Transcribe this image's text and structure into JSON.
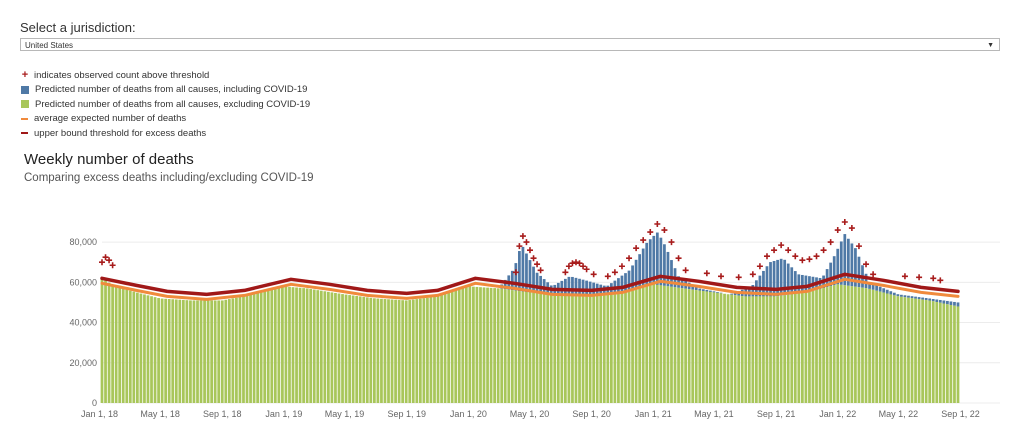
{
  "filter": {
    "label": "Select a jurisdiction:",
    "selected": "United States"
  },
  "legend": [
    {
      "icon": "plus-icon",
      "color": "#a81c1c",
      "text": "indicates observed count above threshold"
    },
    {
      "icon": "square-icon",
      "color": "#4f79a6",
      "text": "Predicted number of deaths from all causes, including COVID-19"
    },
    {
      "icon": "square-icon",
      "color": "#a8c65a",
      "text": "Predicted number of deaths from all causes, excluding COVID-19"
    },
    {
      "icon": "line-icon",
      "color": "#f08a3c",
      "text": "average expected number of deaths"
    },
    {
      "icon": "line-icon",
      "color": "#a01818",
      "text": "upper bound threshold for excess deaths"
    }
  ],
  "chart": {
    "title": "Weekly number of deaths",
    "subtitle": "Comparing excess deaths including/excluding COVID-19"
  },
  "chart_data": {
    "type": "bar",
    "title": "Weekly number of deaths",
    "subtitle": "Comparing excess deaths including/excluding COVID-19",
    "xlabel": "",
    "ylabel": "",
    "ylim": [
      0,
      90000
    ],
    "y_ticks": [
      "0",
      "20,000",
      "40,000",
      "60,000",
      "80,000"
    ],
    "x_ticks": [
      "Jan 1, 18",
      "May 1, 18",
      "Sep 1, 18",
      "Jan 1, 19",
      "May 1, 19",
      "Sep 1, 19",
      "Jan 1, 20",
      "May 1, 20",
      "Sep 1, 20",
      "Jan 1, 21",
      "May 1, 21",
      "Sep 1, 21",
      "Jan 1, 22",
      "May 1, 22",
      "Sep 1, 22"
    ],
    "x_start": "2018-01-06",
    "x_end": "2022-08-27",
    "grid": true,
    "legend": "top-left",
    "colors": {
      "including_covid": "#4f79a6",
      "excluding_covid": "#a8c65a",
      "average_expected": "#f08a3c",
      "upper_bound": "#a01818",
      "above_threshold": "#a81c1c"
    },
    "series": [
      {
        "name": "Predicted number of deaths from all causes, excluding COVID-19",
        "kind": "bar",
        "points": [
          [
            "2018-01-06",
            62000
          ],
          [
            "2018-02-01",
            58000
          ],
          [
            "2018-03-15",
            55000
          ],
          [
            "2018-05-01",
            52000
          ],
          [
            "2018-07-01",
            51000
          ],
          [
            "2018-09-01",
            51000
          ],
          [
            "2018-11-01",
            54000
          ],
          [
            "2019-01-01",
            58000
          ],
          [
            "2019-02-15",
            57000
          ],
          [
            "2019-05-01",
            54000
          ],
          [
            "2019-07-01",
            52000
          ],
          [
            "2019-09-01",
            51000
          ],
          [
            "2019-11-01",
            53000
          ],
          [
            "2020-01-01",
            58000
          ],
          [
            "2020-03-01",
            57000
          ],
          [
            "2020-05-01",
            55000
          ],
          [
            "2020-07-01",
            54000
          ],
          [
            "2020-09-01",
            53000
          ],
          [
            "2020-11-01",
            55000
          ],
          [
            "2021-01-01",
            59000
          ],
          [
            "2021-03-01",
            57000
          ],
          [
            "2021-05-01",
            55000
          ],
          [
            "2021-07-01",
            53000
          ],
          [
            "2021-09-01",
            53000
          ],
          [
            "2021-11-01",
            55000
          ],
          [
            "2022-01-01",
            59000
          ],
          [
            "2022-03-01",
            57000
          ],
          [
            "2022-05-01",
            53000
          ],
          [
            "2022-07-01",
            51000
          ],
          [
            "2022-08-27",
            48000
          ]
        ]
      },
      {
        "name": "Predicted number of deaths from all causes, including COVID-19",
        "kind": "bar",
        "points": [
          [
            "2018-01-06",
            62000
          ],
          [
            "2018-02-01",
            58000
          ],
          [
            "2018-03-15",
            55000
          ],
          [
            "2018-05-01",
            52000
          ],
          [
            "2018-07-01",
            51000
          ],
          [
            "2018-09-01",
            51000
          ],
          [
            "2018-11-01",
            54000
          ],
          [
            "2019-01-01",
            58000
          ],
          [
            "2019-02-15",
            57000
          ],
          [
            "2019-05-01",
            54000
          ],
          [
            "2019-07-01",
            52000
          ],
          [
            "2019-09-01",
            51000
          ],
          [
            "2019-11-01",
            53000
          ],
          [
            "2020-01-01",
            58000
          ],
          [
            "2020-03-01",
            57000
          ],
          [
            "2020-04-01",
            67000
          ],
          [
            "2020-04-15",
            79000
          ],
          [
            "2020-05-15",
            65000
          ],
          [
            "2020-06-15",
            58000
          ],
          [
            "2020-07-20",
            63000
          ],
          [
            "2020-08-20",
            61000
          ],
          [
            "2020-10-01",
            58000
          ],
          [
            "2020-11-15",
            66000
          ],
          [
            "2020-12-20",
            80000
          ],
          [
            "2021-01-10",
            85000
          ],
          [
            "2021-01-25",
            78000
          ],
          [
            "2021-02-20",
            63000
          ],
          [
            "2021-04-01",
            57000
          ],
          [
            "2021-06-01",
            54000
          ],
          [
            "2021-07-15",
            58000
          ],
          [
            "2021-08-20",
            70000
          ],
          [
            "2021-09-15",
            72000
          ],
          [
            "2021-10-15",
            64000
          ],
          [
            "2021-12-01",
            62000
          ],
          [
            "2021-12-25",
            73000
          ],
          [
            "2022-01-15",
            84000
          ],
          [
            "2022-02-05",
            77000
          ],
          [
            "2022-03-05",
            60000
          ],
          [
            "2022-05-01",
            54000
          ],
          [
            "2022-07-01",
            52000
          ],
          [
            "2022-08-27",
            50000
          ]
        ]
      },
      {
        "name": "average expected number of deaths",
        "kind": "line",
        "points": [
          [
            "2018-01-06",
            59500
          ],
          [
            "2018-03-15",
            56000
          ],
          [
            "2018-05-15",
            53000
          ],
          [
            "2018-08-01",
            51500
          ],
          [
            "2018-10-15",
            53500
          ],
          [
            "2019-01-15",
            59000
          ],
          [
            "2019-04-01",
            56500
          ],
          [
            "2019-06-15",
            53500
          ],
          [
            "2019-09-01",
            52000
          ],
          [
            "2019-11-01",
            53500
          ],
          [
            "2020-01-15",
            59500
          ],
          [
            "2020-04-01",
            57000
          ],
          [
            "2020-06-15",
            54000
          ],
          [
            "2020-09-01",
            53500
          ],
          [
            "2020-11-01",
            55000
          ],
          [
            "2021-01-15",
            60500
          ],
          [
            "2021-04-01",
            58000
          ],
          [
            "2021-06-15",
            55000
          ],
          [
            "2021-09-01",
            54000
          ],
          [
            "2021-11-01",
            55500
          ],
          [
            "2022-01-15",
            61500
          ],
          [
            "2022-04-01",
            58500
          ],
          [
            "2022-06-15",
            55000
          ],
          [
            "2022-08-27",
            53000
          ]
        ]
      },
      {
        "name": "upper bound threshold for excess deaths",
        "kind": "line",
        "points": [
          [
            "2018-01-06",
            62000
          ],
          [
            "2018-03-15",
            58500
          ],
          [
            "2018-05-15",
            55500
          ],
          [
            "2018-08-01",
            54000
          ],
          [
            "2018-10-15",
            56000
          ],
          [
            "2019-01-15",
            61500
          ],
          [
            "2019-04-01",
            59000
          ],
          [
            "2019-06-15",
            56000
          ],
          [
            "2019-09-01",
            54500
          ],
          [
            "2019-11-01",
            56000
          ],
          [
            "2020-01-15",
            62000
          ],
          [
            "2020-04-01",
            59500
          ],
          [
            "2020-06-15",
            56500
          ],
          [
            "2020-09-01",
            56000
          ],
          [
            "2020-11-01",
            57500
          ],
          [
            "2021-01-15",
            63000
          ],
          [
            "2021-04-01",
            60500
          ],
          [
            "2021-06-15",
            57500
          ],
          [
            "2021-09-01",
            56500
          ],
          [
            "2021-11-01",
            58000
          ],
          [
            "2022-01-15",
            64000
          ],
          [
            "2022-04-01",
            61000
          ],
          [
            "2022-06-15",
            57500
          ],
          [
            "2022-08-27",
            55500
          ]
        ]
      },
      {
        "name": "indicates observed count above threshold",
        "kind": "marker",
        "points": [
          [
            "2018-01-06",
            70000
          ],
          [
            "2018-01-13",
            72500
          ],
          [
            "2018-01-20",
            71000
          ],
          [
            "2018-01-27",
            68500
          ],
          [
            "2020-04-04",
            65000
          ],
          [
            "2020-04-11",
            78000
          ],
          [
            "2020-04-18",
            83000
          ],
          [
            "2020-04-25",
            80000
          ],
          [
            "2020-05-02",
            76000
          ],
          [
            "2020-05-09",
            72000
          ],
          [
            "2020-05-16",
            69000
          ],
          [
            "2020-05-23",
            66000
          ],
          [
            "2020-07-11",
            65000
          ],
          [
            "2020-07-18",
            68000
          ],
          [
            "2020-07-25",
            69500
          ],
          [
            "2020-08-01",
            70000
          ],
          [
            "2020-08-08",
            69500
          ],
          [
            "2020-08-15",
            68000
          ],
          [
            "2020-08-22",
            66500
          ],
          [
            "2020-09-05",
            64000
          ],
          [
            "2020-10-03",
            63000
          ],
          [
            "2020-10-17",
            65000
          ],
          [
            "2020-10-31",
            68000
          ],
          [
            "2020-11-14",
            72000
          ],
          [
            "2020-11-28",
            77000
          ],
          [
            "2020-12-12",
            81000
          ],
          [
            "2020-12-26",
            85000
          ],
          [
            "2021-01-09",
            89000
          ],
          [
            "2021-01-23",
            86000
          ],
          [
            "2021-02-06",
            80000
          ],
          [
            "2021-02-20",
            72000
          ],
          [
            "2021-03-06",
            66000
          ],
          [
            "2021-04-17",
            64500
          ],
          [
            "2021-05-15",
            63000
          ],
          [
            "2021-06-19",
            62500
          ],
          [
            "2021-07-17",
            64000
          ],
          [
            "2021-07-31",
            68000
          ],
          [
            "2021-08-14",
            73000
          ],
          [
            "2021-08-28",
            76000
          ],
          [
            "2021-09-11",
            78500
          ],
          [
            "2021-09-25",
            76000
          ],
          [
            "2021-10-09",
            73000
          ],
          [
            "2021-10-23",
            71000
          ],
          [
            "2021-11-06",
            71500
          ],
          [
            "2021-11-20",
            73000
          ],
          [
            "2021-12-04",
            76000
          ],
          [
            "2021-12-18",
            80000
          ],
          [
            "2022-01-01",
            86000
          ],
          [
            "2022-01-15",
            90000
          ],
          [
            "2022-01-29",
            87000
          ],
          [
            "2022-02-12",
            78000
          ],
          [
            "2022-02-26",
            69000
          ],
          [
            "2022-03-12",
            64000
          ],
          [
            "2022-05-14",
            63000
          ],
          [
            "2022-06-11",
            62500
          ],
          [
            "2022-07-09",
            62000
          ],
          [
            "2022-07-23",
            61000
          ]
        ]
      }
    ]
  }
}
